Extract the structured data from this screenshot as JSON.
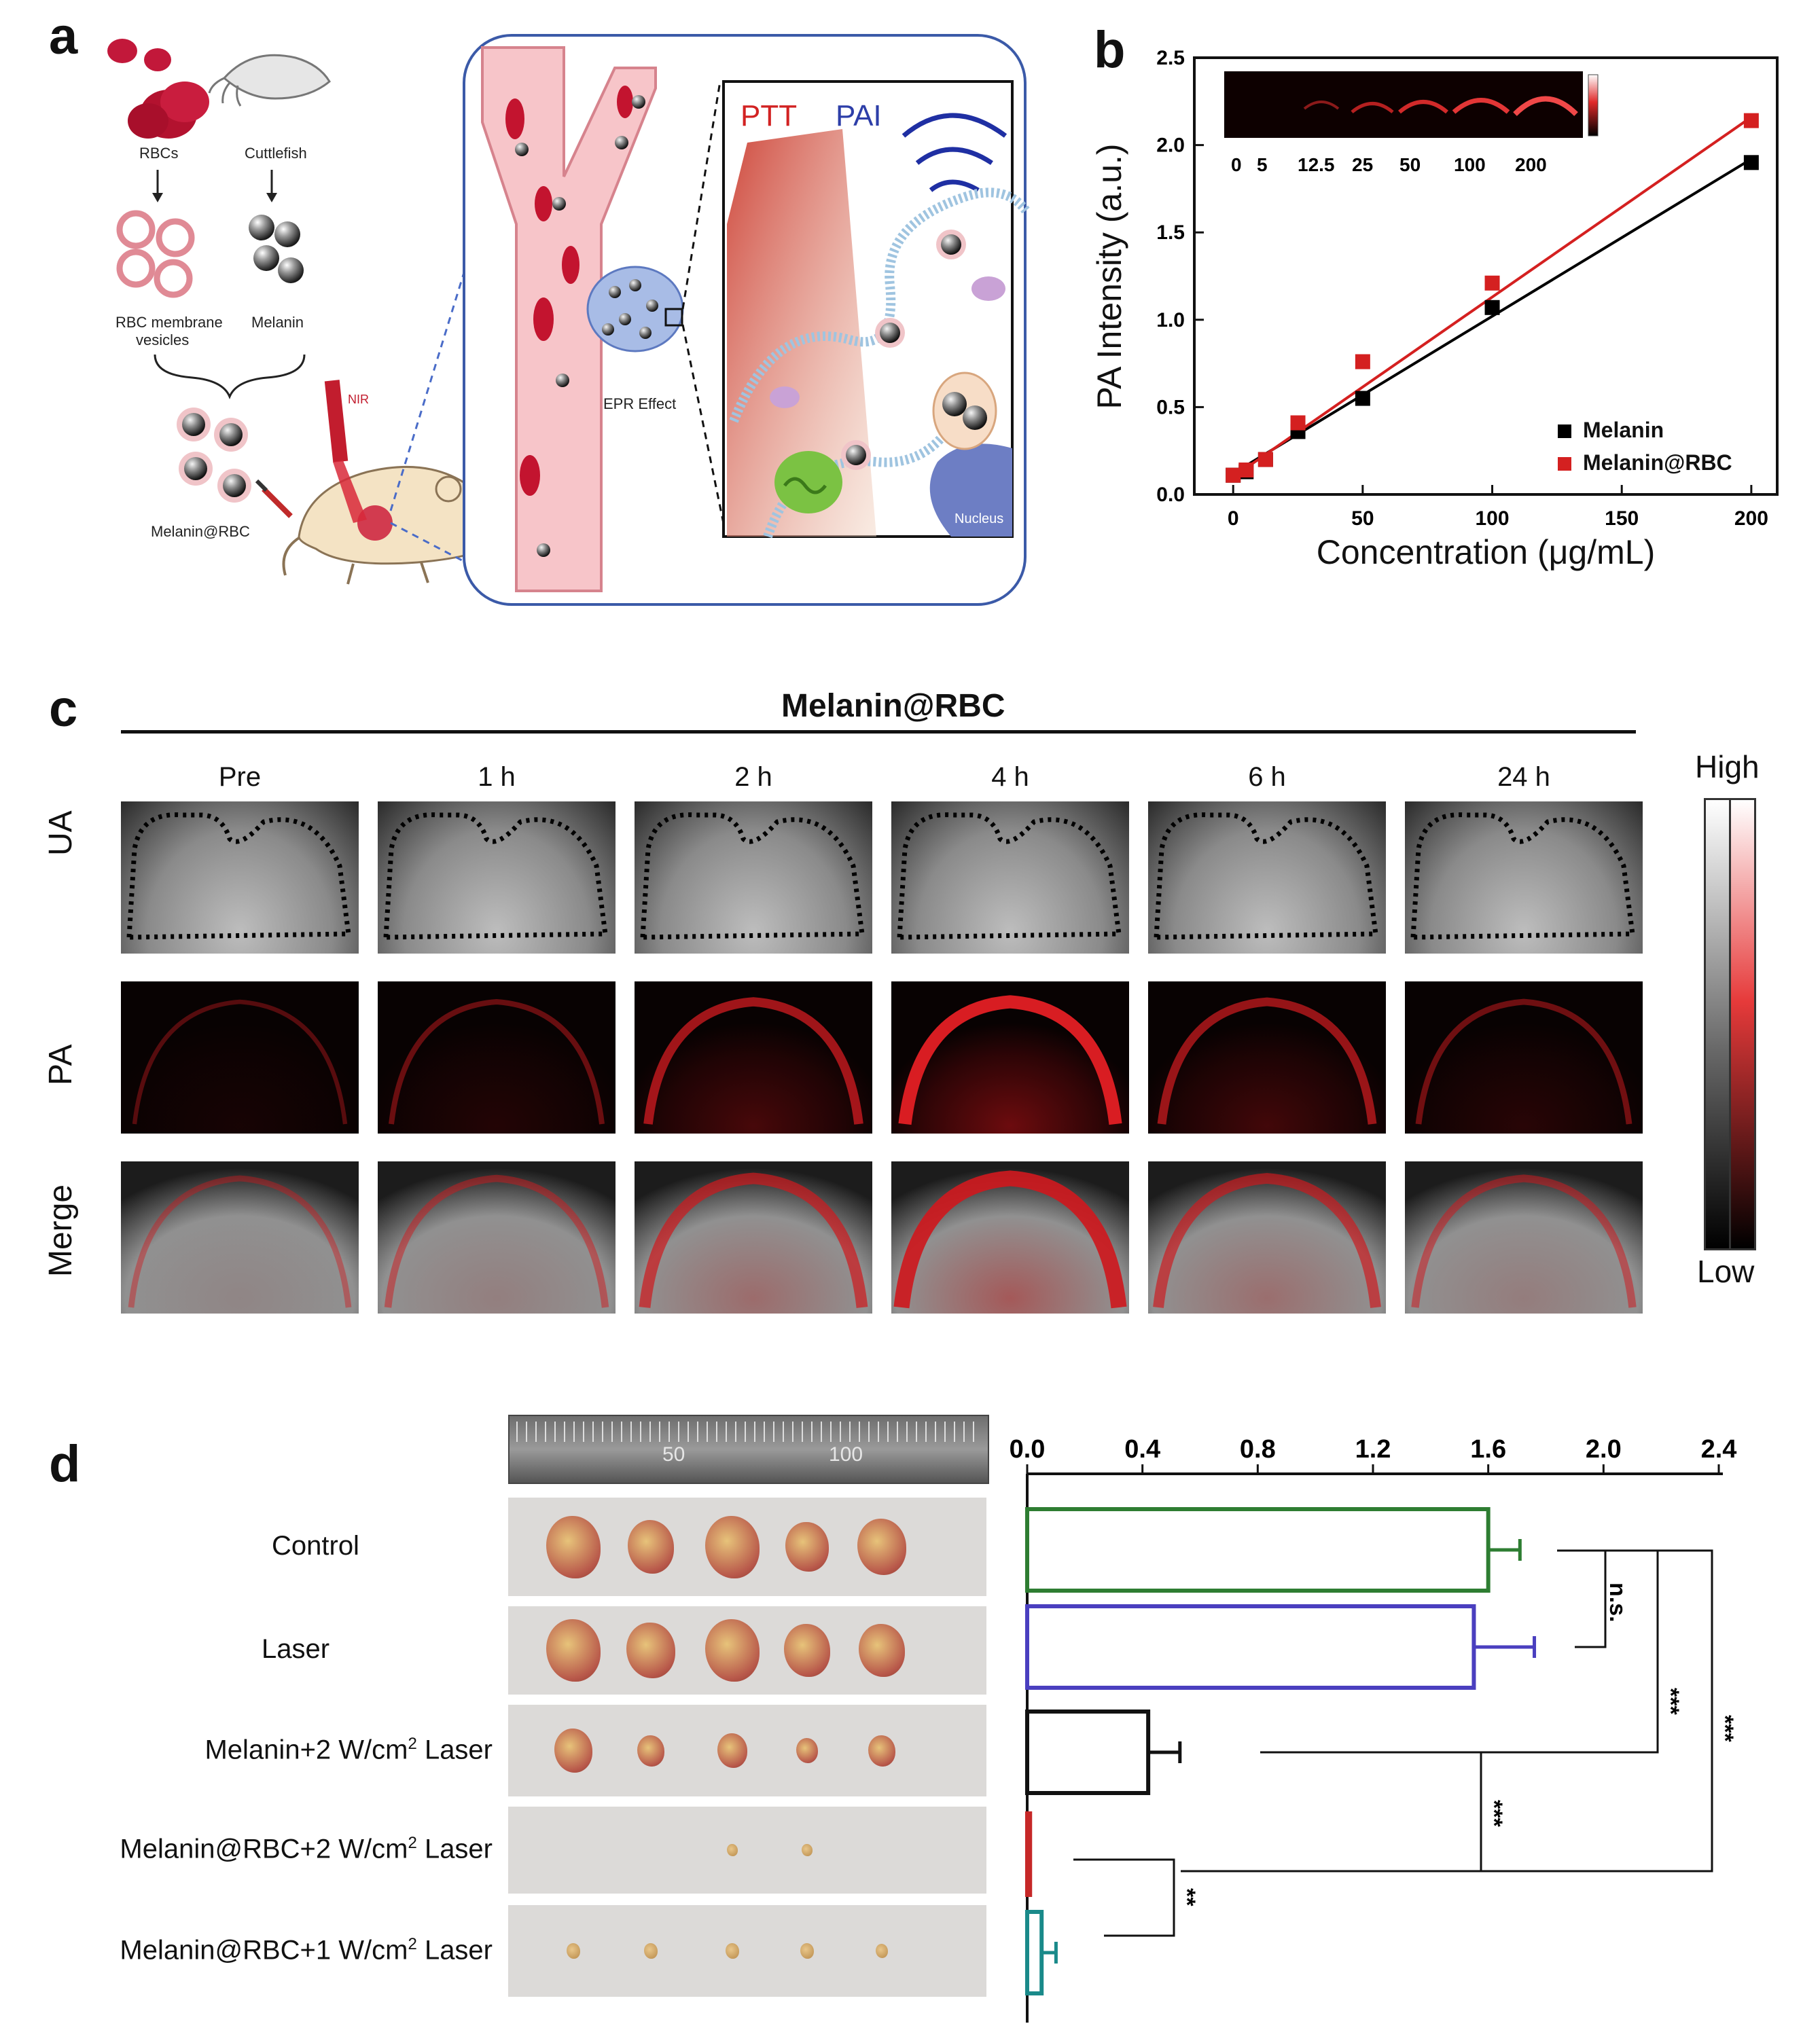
{
  "panels": {
    "a": "a",
    "b": "b",
    "c": "c",
    "d": "d"
  },
  "panel_a": {
    "labels": {
      "rbcs": "RBCs",
      "cuttlefish": "Cuttlefish",
      "rbc_membrane_vesicles_1": "RBC membrane",
      "rbc_membrane_vesicles_2": "vesicles",
      "melanin": "Melanin",
      "melanin_rbc": "Melanin@RBC",
      "nir": "NIR",
      "epr_effect": "EPR Effect",
      "ptt": "PTT",
      "pai": "PAI",
      "nucleus": "Nucleus"
    }
  },
  "panel_c": {
    "title": "Melanin@RBC",
    "timepoints": [
      "Pre",
      "1 h",
      "2 h",
      "4 h",
      "6 h",
      "24 h"
    ],
    "rows": [
      "UA",
      "PA",
      "Merge"
    ],
    "scale_high": "High",
    "scale_low": "Low",
    "pa_intensity": [
      0.15,
      0.25,
      0.6,
      0.95,
      0.55,
      0.3
    ]
  },
  "panel_d": {
    "groups": [
      {
        "label": "Control",
        "sup": "",
        "suffix": ""
      },
      {
        "label": "Laser",
        "sup": "",
        "suffix": ""
      },
      {
        "label": "Melanin+2 W/cm",
        "sup": "2",
        "suffix": " Laser"
      },
      {
        "label": "Melanin@RBC+2 W/cm",
        "sup": "2",
        "suffix": " Laser"
      },
      {
        "label": "Melanin@RBC+1 W/cm",
        "sup": "2",
        "suffix": " Laser"
      }
    ],
    "ruler_marks": [
      "50",
      "100"
    ],
    "significance": {
      "ns": "n.s.",
      "s1": "***",
      "s2": "***",
      "s3": "***",
      "s4": "**"
    }
  },
  "chart_data": [
    {
      "type": "scatter",
      "panel": "b",
      "xlabel": "Concentration (μg/mL)",
      "ylabel": "PA Intensity (a.u.)",
      "xlim": [
        -15,
        210
      ],
      "ylim": [
        0,
        2.5
      ],
      "xticks": [
        "0",
        "50",
        "100",
        "150",
        "200"
      ],
      "yticks": [
        "0.0",
        "0.5",
        "1.0",
        "1.5",
        "2.0",
        "2.5"
      ],
      "legend_position": "bottom-right",
      "inset_labels": [
        "0",
        "5",
        "12.5",
        "25",
        "50",
        "100",
        "200"
      ],
      "series": [
        {
          "name": "Melanin",
          "color": "#000000",
          "x": [
            0,
            5,
            12.5,
            25,
            50,
            100,
            200
          ],
          "y": [
            0.11,
            0.13,
            0.2,
            0.36,
            0.55,
            1.07,
            1.9
          ],
          "fit": [
            [
              0,
              0.12
            ],
            [
              200,
              1.92
            ]
          ]
        },
        {
          "name": "Melanin@RBC",
          "color": "#d42020",
          "x": [
            0,
            5,
            12.5,
            25,
            50,
            100,
            200
          ],
          "y": [
            0.11,
            0.14,
            0.2,
            0.41,
            0.76,
            1.21,
            2.14
          ],
          "fit": [
            [
              0,
              0.1
            ],
            [
              200,
              2.16
            ]
          ]
        }
      ]
    },
    {
      "type": "bar",
      "panel": "d",
      "orientation": "horizontal",
      "xlim": [
        0,
        2.4
      ],
      "xticks": [
        "0.0",
        "0.4",
        "0.8",
        "1.2",
        "1.6",
        "2.0",
        "2.4"
      ],
      "categories": [
        "Control",
        "Laser",
        "Melanin+2 W/cm2 Laser",
        "Melanin@RBC+2 W/cm2 Laser",
        "Melanin@RBC+1 W/cm2 Laser"
      ],
      "values": [
        1.6,
        1.55,
        0.42,
        0.01,
        0.05
      ],
      "errors": [
        0.11,
        0.21,
        0.11,
        0.0,
        0.05
      ],
      "colors": [
        "#2e7d32",
        "#4a3fbf",
        "#111111",
        "#c62828",
        "#1a8a8a"
      ]
    }
  ]
}
